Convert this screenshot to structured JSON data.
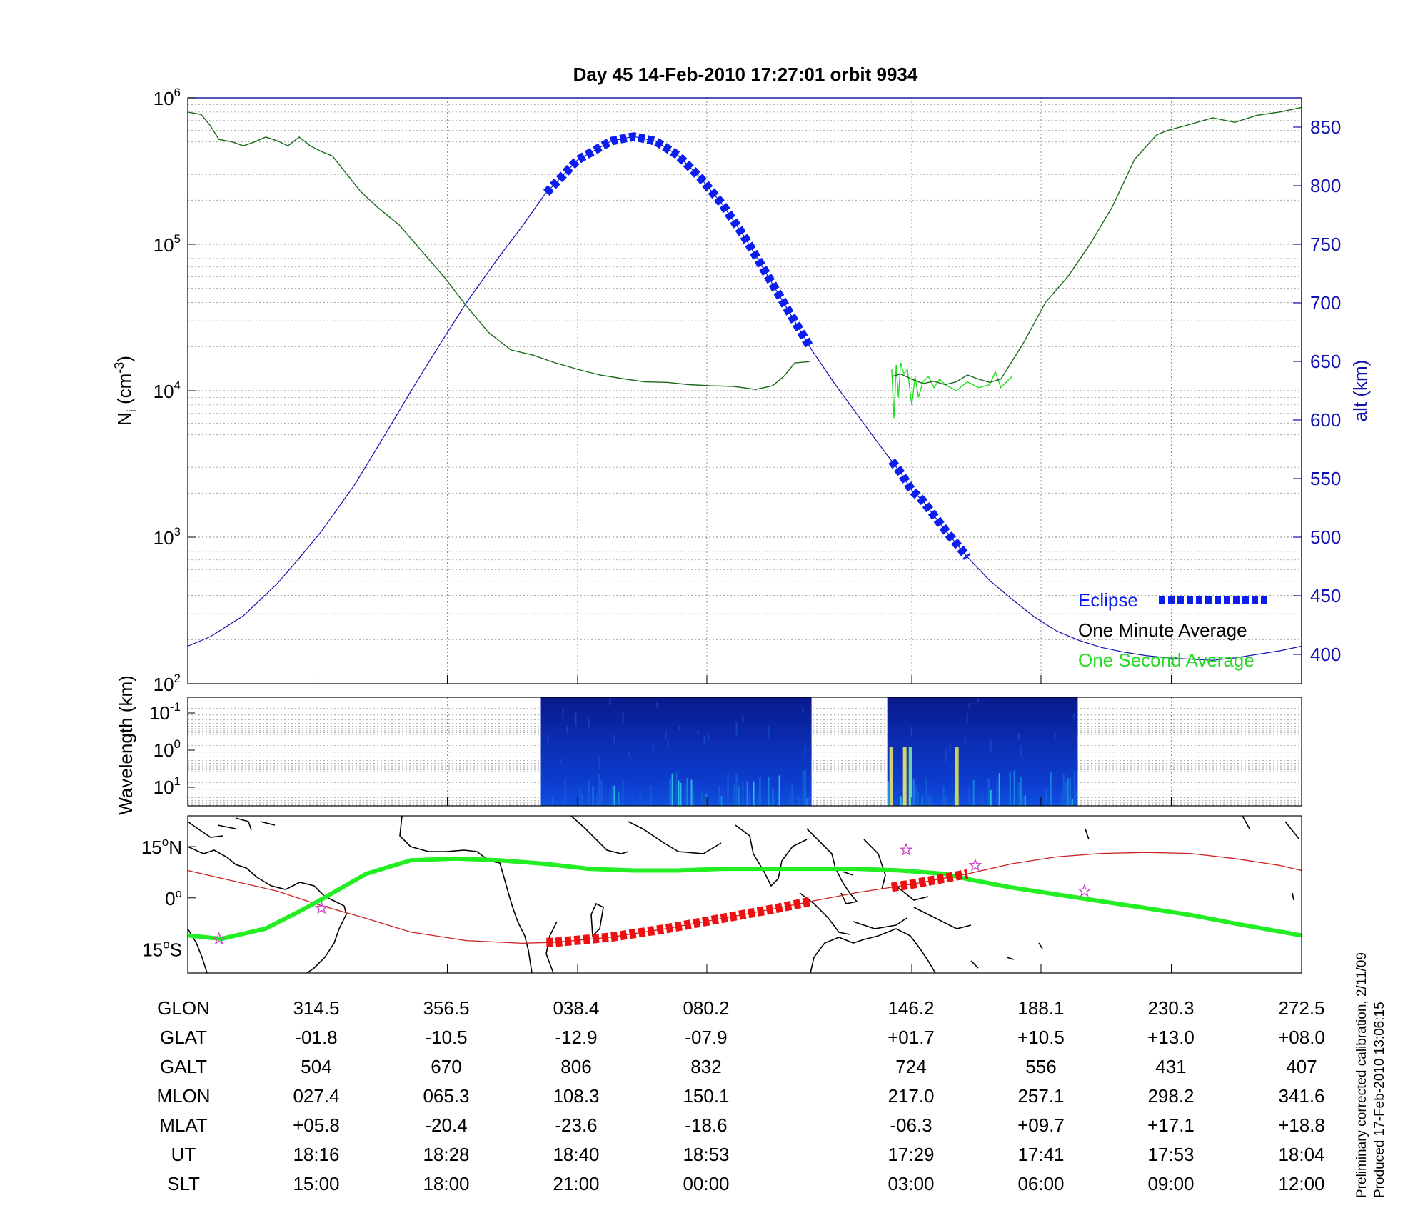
{
  "title": "Day 45  14-Feb-2010 17:27:01   orbit 9934",
  "colors": {
    "density_minute": "#1a6b1a",
    "density_second": "#22dd22",
    "altitude": "#1010b0",
    "eclipse": "#0a1ef0",
    "ground_track": "#cc2020",
    "magnetic_equator": "#22ee22",
    "eclipse_track": "#ee1010",
    "star": "#cc44cc",
    "coast": "#000000"
  },
  "chart_data": [
    {
      "type": "line",
      "name": "ion-density-altitude",
      "ylabel": "N",
      "ylabel_sub": "i",
      "ylabel_unit": " (cm",
      "ylabel_exp": "-3",
      "ylabel_close": ")",
      "y2label": "alt (km)",
      "ylim_log": [
        2,
        6
      ],
      "yticks": [
        {
          "base": "10",
          "exp": "2",
          "value": 100
        },
        {
          "base": "10",
          "exp": "3",
          "value": 1000
        },
        {
          "base": "10",
          "exp": "4",
          "value": 10000
        },
        {
          "base": "10",
          "exp": "5",
          "value": 100000
        },
        {
          "base": "10",
          "exp": "6",
          "value": 1000000
        }
      ],
      "y2lim": [
        375,
        875
      ],
      "y2ticks": [
        "400",
        "450",
        "500",
        "550",
        "600",
        "650",
        "700",
        "750",
        "800",
        "850"
      ],
      "legend": {
        "placement": "bottom-right",
        "entries": [
          {
            "label": "Eclipse",
            "color": "#0a1ef0"
          },
          {
            "label": "One Minute Average",
            "color": "#000000"
          },
          {
            "label": "One Second Average",
            "color": "#22dd22"
          }
        ]
      },
      "altitude_km": {
        "x": [
          0,
          0.02,
          0.05,
          0.08,
          0.1,
          0.12,
          0.15,
          0.18,
          0.2,
          0.22,
          0.25,
          0.28,
          0.3,
          0.32,
          0.35,
          0.38,
          0.4,
          0.42,
          0.44,
          0.46,
          0.48,
          0.5,
          0.52,
          0.54,
          0.56,
          0.58,
          0.6,
          0.62,
          0.64,
          0.65,
          0.66,
          0.68,
          0.7,
          0.72,
          0.74,
          0.76,
          0.78,
          0.8,
          0.82,
          0.84,
          0.86,
          0.88,
          0.9,
          0.92,
          0.94,
          0.96,
          0.98,
          1.0
        ],
        "y": [
          407,
          415,
          433,
          460,
          482,
          505,
          545,
          592,
          624,
          655,
          700,
          740,
          765,
          792,
          822,
          838,
          842,
          838,
          826,
          807,
          784,
          756,
          724,
          692,
          660,
          632,
          606,
          580,
          555,
          540,
          531,
          506,
          483,
          463,
          447,
          432,
          420,
          412,
          406,
          402,
          399,
          397,
          396,
          395,
          397,
          400,
          403,
          407
        ]
      },
      "eclipse_segments": [
        {
          "x_start": 0.322,
          "x_end": 0.558
        },
        {
          "x_start": 0.632,
          "x_end": 0.7
        }
      ],
      "density_minute": {
        "segments": [
          {
            "x": [
              0,
              0.012,
              0.02,
              0.028,
              0.04,
              0.05,
              0.06,
              0.07,
              0.08,
              0.09,
              0.1,
              0.11,
              0.12,
              0.13,
              0.14,
              0.155,
              0.17,
              0.19,
              0.21,
              0.23,
              0.25,
              0.27,
              0.29,
              0.31,
              0.33,
              0.35,
              0.37,
              0.39,
              0.41,
              0.43,
              0.45,
              0.47,
              0.49,
              0.51,
              0.525,
              0.535,
              0.545,
              0.558
            ],
            "y": [
              800000,
              770000,
              650000,
              520000,
              500000,
              470000,
              500000,
              540000,
              510000,
              470000,
              540000,
              470000,
              430000,
              400000,
              320000,
              230000,
              180000,
              135000,
              90000,
              60000,
              38000,
              25000,
              19000,
              17500,
              15500,
              14000,
              12800,
              12100,
              11500,
              11400,
              11000,
              10800,
              10700,
              10200,
              10800,
              12500,
              15500,
              15800
            ]
          },
          {
            "x": [
              0.632,
              0.64,
              0.65,
              0.66,
              0.67,
              0.68,
              0.69,
              0.7,
              0.71,
              0.72,
              0.73,
              0.75,
              0.77,
              0.79,
              0.81,
              0.83,
              0.85,
              0.87,
              0.88,
              0.9,
              0.92,
              0.94,
              0.96,
              0.98,
              1.0
            ],
            "y": [
              12500,
              13000,
              12000,
              11200,
              11600,
              11000,
              11500,
              12800,
              12000,
              11400,
              12000,
              21000,
              40000,
              60000,
              100000,
              180000,
              380000,
              560000,
              600000,
              660000,
              730000,
              680000,
              760000,
              800000,
              860000
            ]
          }
        ]
      },
      "density_second": {
        "x": [
          0.632,
          0.634,
          0.636,
          0.638,
          0.64,
          0.643,
          0.646,
          0.65,
          0.653,
          0.656,
          0.66,
          0.665,
          0.67,
          0.675,
          0.68,
          0.69,
          0.7,
          0.71,
          0.72,
          0.725,
          0.73,
          0.735,
          0.74
        ],
        "y": [
          14000,
          6500,
          15000,
          9000,
          15500,
          13000,
          14000,
          8000,
          12500,
          9000,
          11500,
          12500,
          10500,
          12000,
          11000,
          10000,
          11500,
          10500,
          11000,
          13500,
          10500,
          11500,
          12500
        ]
      }
    },
    {
      "type": "heatmap",
      "name": "wavelength-spectrogram",
      "ylabel": "Wavelength (km)",
      "yticks": [
        {
          "base": "10",
          "exp": "-1"
        },
        {
          "base": "10",
          "exp": "0"
        },
        {
          "base": "10",
          "exp": "1"
        }
      ],
      "data_blocks": [
        {
          "x_start": 0.317,
          "x_end": 0.56
        },
        {
          "x_start": 0.628,
          "x_end": 0.799
        }
      ]
    },
    {
      "type": "line",
      "name": "orbit-map",
      "lat_range": [
        -22,
        24
      ],
      "yticks": [
        {
          "deg": "15",
          "hemi": "N",
          "lat": 15
        },
        {
          "deg": "0",
          "hemi": "",
          "lat": 0
        },
        {
          "deg": "15",
          "hemi": "S",
          "lat": -15
        }
      ],
      "ground_track": {
        "x": [
          0,
          0.04,
          0.08,
          0.117,
          0.16,
          0.2,
          0.25,
          0.3,
          0.33,
          0.38,
          0.43,
          0.48,
          0.53,
          0.56,
          0.6,
          0.65,
          0.7,
          0.74,
          0.78,
          0.82,
          0.86,
          0.9,
          0.94,
          0.98,
          1.0
        ],
        "y": [
          8,
          5,
          2,
          -2,
          -6,
          -10,
          -12.5,
          -13.3,
          -13,
          -11.5,
          -9,
          -6,
          -3,
          -1,
          1.5,
          4,
          7,
          10,
          12,
          13,
          13.3,
          13,
          11.5,
          9.5,
          8
        ]
      },
      "magnetic_equator": {
        "x": [
          0,
          0.03,
          0.07,
          0.1,
          0.117,
          0.16,
          0.2,
          0.24,
          0.28,
          0.32,
          0.36,
          0.4,
          0.44,
          0.48,
          0.52,
          0.56,
          0.6,
          0.64,
          0.68,
          0.7,
          0.74,
          0.78,
          0.82,
          0.86,
          0.9,
          0.94,
          1.0
        ],
        "y": [
          -11,
          -12,
          -9,
          -4,
          -1,
          7,
          11,
          11.5,
          11,
          10,
          8.5,
          8,
          8,
          8.5,
          8.5,
          8.5,
          8.5,
          8,
          7,
          5.5,
          3,
          1,
          -1,
          -3,
          -5,
          -7.5,
          -11
        ]
      },
      "eclipse_tracks": [
        {
          "x_start": 0.322,
          "x_end": 0.558
        },
        {
          "x_start": 0.632,
          "x_end": 0.7
        }
      ],
      "stars": [
        {
          "x": 0.028,
          "y": -12
        },
        {
          "x": 0.12,
          "y": -3
        },
        {
          "x": 0.645,
          "y": 14
        },
        {
          "x": 0.707,
          "y": 9.5
        },
        {
          "x": 0.805,
          "y": 2
        }
      ]
    }
  ],
  "table": {
    "rows": [
      {
        "label": "GLON",
        "values": [
          "314.5",
          "356.5",
          "038.4",
          "080.2",
          "146.2",
          "188.1",
          "230.3",
          "272.5"
        ]
      },
      {
        "label": "GLAT",
        "values": [
          "-01.8",
          "-10.5",
          "-12.9",
          "-07.9",
          "+01.7",
          "+10.5",
          "+13.0",
          "+08.0"
        ]
      },
      {
        "label": "GALT",
        "values": [
          "504",
          "670",
          "806",
          "832",
          "724",
          "556",
          "431",
          "407"
        ]
      },
      {
        "label": "MLON",
        "values": [
          "027.4",
          "065.3",
          "108.3",
          "150.1",
          "217.0",
          "257.1",
          "298.2",
          "341.6"
        ]
      },
      {
        "label": "MLAT",
        "values": [
          "+05.8",
          "-20.4",
          "-23.6",
          "-18.6",
          "-06.3",
          "+09.7",
          "+17.1",
          "+18.8"
        ]
      },
      {
        "label": "UT",
        "values": [
          "18:16",
          "18:28",
          "18:40",
          "18:53",
          "17:29",
          "17:41",
          "17:53",
          "18:04"
        ]
      },
      {
        "label": "SLT",
        "values": [
          "15:00",
          "18:00",
          "21:00",
          "00:00",
          "03:00",
          "06:00",
          "09:00",
          "12:00"
        ]
      }
    ]
  },
  "side_notes": {
    "line1": "Preliminary corrected calibration, 2/11/09",
    "line2": "Produced 17-Feb-2010 13:06:15"
  }
}
